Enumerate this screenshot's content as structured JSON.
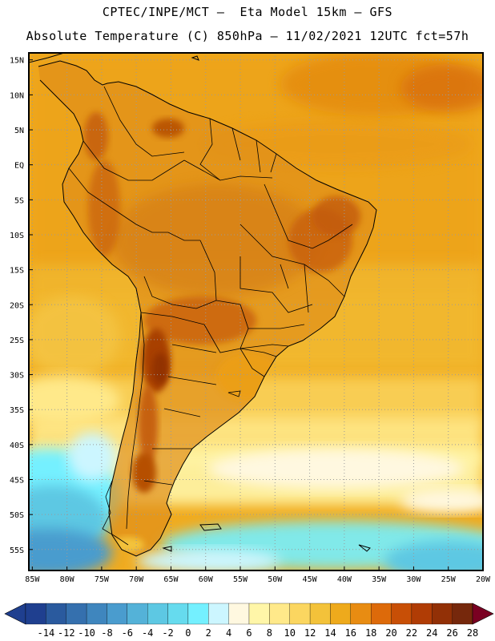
{
  "header": {
    "title_line1": "CPTEC/INPE/MCT –  Eta Model 15km – GFS",
    "title_line2": "Absolute Temperature (C) 850hPa – 11/02/2021 12UTC fct=57h"
  },
  "map": {
    "lat_ticks": [
      "15N",
      "10N",
      "5N",
      "EQ",
      "5S",
      "10S",
      "15S",
      "20S",
      "25S",
      "30S",
      "35S",
      "40S",
      "45S",
      "50S",
      "55S"
    ],
    "lon_ticks": [
      "85W",
      "80W",
      "75W",
      "70W",
      "65W",
      "60W",
      "55W",
      "50W",
      "45W",
      "40W",
      "35W",
      "30W",
      "25W",
      "20W"
    ],
    "lat_values": [
      15,
      10,
      5,
      0,
      -5,
      -10,
      -15,
      -20,
      -25,
      -30,
      -35,
      -40,
      -45,
      -50,
      -55
    ],
    "lon_values": [
      -85,
      -80,
      -75,
      -70,
      -65,
      -60,
      -55,
      -50,
      -45,
      -40,
      -35,
      -30,
      -25,
      -20
    ],
    "extent": {
      "lon_min": -85.5,
      "lon_max": -20.0,
      "lat_min": -58.0,
      "lat_max": 16.0
    }
  },
  "colorbar": {
    "labels": [
      "-14",
      "-12",
      "-10",
      "-8",
      "-6",
      "-4",
      "-2",
      "0",
      "2",
      "4",
      "6",
      "8",
      "10",
      "12",
      "14",
      "16",
      "18",
      "20",
      "22",
      "24",
      "26",
      "28"
    ],
    "colors": [
      "#1f3f8f",
      "#2a5a9e",
      "#3570ae",
      "#3f86be",
      "#4a9cce",
      "#54b2d8",
      "#5dc8e3",
      "#66dbee",
      "#74f0ff",
      "#ccf6ff",
      "#fff8e0",
      "#fff6a8",
      "#ffe98a",
      "#fbd660",
      "#f3c23a",
      "#eeaa1c",
      "#e88c12",
      "#dd6a0a",
      "#c84f06",
      "#b03c05",
      "#923006",
      "#76280c"
    ],
    "under_color": "#1f3f8f",
    "over_color": "#7a0022"
  },
  "colors": {
    "ocean_base": "#f0ab1f",
    "land_base": "#dc8a1e",
    "coast_line": "#000000",
    "grid_line": "#9a9a9a"
  }
}
